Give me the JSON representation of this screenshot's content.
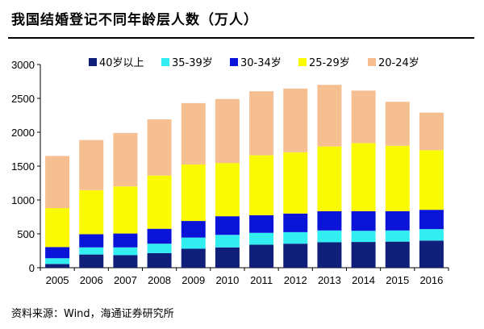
{
  "title": "我国结婚登记不同年龄层人数（万人）",
  "source": "资料来源：Wind，海通证券研究所",
  "chart_data": {
    "type": "bar",
    "stacked": true,
    "title": "我国结婚登记不同年龄层人数（万人）",
    "xlabel": "",
    "ylabel": "",
    "categories": [
      "2005",
      "2006",
      "2007",
      "2008",
      "2009",
      "2010",
      "2011",
      "2012",
      "2013",
      "2014",
      "2015",
      "2016"
    ],
    "ylim": [
      0,
      3000
    ],
    "yticks": [
      0,
      500,
      1000,
      1500,
      2000,
      2500,
      3000
    ],
    "grid": false,
    "legend_position": "top",
    "series": [
      {
        "name": "40岁以上",
        "color": "#0f1f7a",
        "values": [
          55,
          195,
          185,
          215,
          280,
          300,
          340,
          355,
          375,
          380,
          385,
          400
        ]
      },
      {
        "name": "35-39岁",
        "color": "#33eef0",
        "values": [
          85,
          105,
          115,
          140,
          165,
          185,
          175,
          170,
          175,
          165,
          165,
          170
        ]
      },
      {
        "name": "30-34岁",
        "color": "#0a14d8",
        "values": [
          165,
          195,
          205,
          220,
          245,
          275,
          260,
          275,
          285,
          290,
          285,
          285
        ]
      },
      {
        "name": "25-29岁",
        "color": "#fafa05",
        "values": [
          575,
          650,
          695,
          785,
          835,
          785,
          885,
          905,
          955,
          1005,
          965,
          880
        ]
      },
      {
        "name": "20-24岁",
        "color": "#f6bf91",
        "values": [
          770,
          740,
          790,
          830,
          905,
          945,
          945,
          940,
          910,
          775,
          650,
          555
        ]
      }
    ]
  }
}
